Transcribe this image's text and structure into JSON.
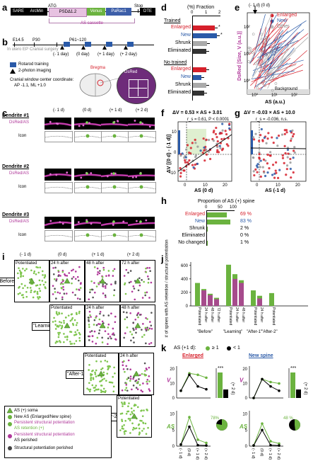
{
  "panels": {
    "a": "a",
    "b": "b",
    "c": "c",
    "d": "d",
    "e": "e",
    "f": "f",
    "g": "g",
    "h": "h",
    "i": "i",
    "j": "j",
    "k": "k"
  },
  "a": {
    "segments": [
      "SARE",
      "ArcMin",
      "PSDΔ1.2",
      "Venus",
      "PaRac1",
      "DTE"
    ],
    "atg": "ATG",
    "stop": "Stop",
    "cassette": "AS cassette"
  },
  "b": {
    "timeline": [
      "E14.5",
      "P30",
      "P61~120"
    ],
    "steps": [
      "In utero EP",
      "Cranial surgery"
    ],
    "days": [
      "(- 1 day)",
      "(0 day)",
      "(+ 1 day)",
      "(+ 2 day)"
    ],
    "legend_rotarod": "Rotarod training",
    "legend_imaging": "2-photon imaging",
    "coord_title": "Cranial window center coordinate:",
    "coord_value": "AP -1.1, ML +1.0",
    "bregma": "Bregma",
    "dsred": "DsRed"
  },
  "c": {
    "cols": [
      "(- 1 d)",
      "(0 d)",
      "(+ 1 d)",
      "(+ 2 d)"
    ],
    "dendrites": [
      "Dendrite #1",
      "Dendrite #2",
      "Dendrite #3"
    ],
    "row_labels": [
      "DsRed/AS",
      "Icon"
    ]
  },
  "d": {
    "axis_title": "(%) Fraction",
    "ticks": [
      "0",
      "1",
      "2"
    ],
    "group1": "Trained",
    "group2": "No trained",
    "rows": [
      "Enlarged",
      "New",
      "Shrunk",
      "Eliminated"
    ],
    "colors": {
      "enlarged": "#d6202b",
      "new": "#2a5aa8",
      "shrunk": "#aaaaaa",
      "eliminated": "#333333"
    },
    "trained": [
      1.55,
      1.7,
      1.0,
      0.95
    ],
    "untrained": [
      0.95,
      0.6,
      0.95,
      0.8
    ],
    "star": "*"
  },
  "e": {
    "top": "(- 1 d) (0 d)",
    "ylabel": "DsRed [Size, V (a.u.)]",
    "xlabel": "AS (a.u.)",
    "legend": [
      "Enlarged",
      "New",
      "Other"
    ],
    "background": "Background",
    "xticks": [
      "10⁰",
      "10¹",
      "10²"
    ],
    "yticks": [
      "10⁰",
      "10¹",
      "10²"
    ]
  },
  "f": {
    "eq": "ΔV = 0.53 × AS + 3.01",
    "stat": "r_s = 0.61, P < 0.0001",
    "ylabel": "ΔV [(0 d) - (-1 d)]",
    "xlabel": "AS (0 d)",
    "yticks": [
      "10",
      "0",
      "-10"
    ],
    "xticks": [
      "0",
      "10",
      "20"
    ]
  },
  "g": {
    "eq": "ΔV = -0.03 × AS + 10.0",
    "stat": "r_s = -0.036, n.s.",
    "xlabel": "AS (-1 d)",
    "xticks": [
      "0",
      "10",
      "20"
    ]
  },
  "h": {
    "title": "Proportion of AS (+) spine",
    "ticks": [
      "0",
      "50",
      "100"
    ],
    "rows": [
      {
        "label": "Enlarged",
        "value": 69,
        "text": "69 %"
      },
      {
        "label": "New",
        "value": 83,
        "text": "83 %"
      },
      {
        "label": "Shrunk",
        "value": 2,
        "text": "2 %"
      },
      {
        "label": "Eliminated",
        "value": 0,
        "text": "0 %"
      },
      {
        "label": "No changed",
        "value": 1,
        "text": "1 %"
      }
    ]
  },
  "i": {
    "cols": [
      "(- 1 d)",
      "(0 d)",
      "(+ 1 d)",
      "(+ 2 d)"
    ],
    "phases": [
      "\"Before\"",
      "\"Learning\"",
      "\"After-1\"",
      "\"After-2\""
    ],
    "row1": [
      "Potentiated",
      "24 h after",
      "48 h after",
      "72 h after"
    ],
    "row2": [
      "Potentiated",
      "24 h after",
      "48 h after"
    ],
    "row3": [
      "Potentiated",
      "24 h after"
    ],
    "row4": [
      "Potentiated"
    ],
    "legend": [
      "AS (+) soma",
      "New AS (Enlarged/New spine)",
      "Persistent structural potentiation",
      "AS retention (+)",
      "Persistent structural potentiation",
      "AS perished",
      "Structural potentiation perished"
    ]
  },
  "j": {
    "ylabel": "# of spines with AS retention / structural potentiation",
    "yticks": [
      "0",
      "200",
      "400",
      "600"
    ],
    "groups": [
      {
        "name": "\"Before\"",
        "bars": [
          "Potentiated",
          "24 h after",
          "48 h after",
          "72 h after"
        ],
        "green": [
          340,
          250,
          180,
          120
        ],
        "magenta": [
          0,
          230,
          160,
          100
        ]
      },
      {
        "name": "\"Learning\"",
        "bars": [
          "Potentiated",
          "24 h after",
          "48 h after"
        ],
        "green": [
          610,
          470,
          380
        ],
        "magenta": [
          0,
          400,
          340
        ]
      },
      {
        "name": "\"After-1\"",
        "bars": [
          "Potentiated",
          "24 h after"
        ],
        "green": [
          230,
          150
        ],
        "magenta": [
          0,
          110
        ]
      },
      {
        "name": "\"After-2\"",
        "bars": [
          "Potentiated"
        ],
        "green": [
          190
        ],
        "magenta": [
          0
        ]
      }
    ]
  },
  "k": {
    "legend_title": "AS (+1 d):",
    "legend_ge": "≥ 1",
    "legend_lt": "< 1",
    "enlarged": "Enlarged",
    "new": "New spine",
    "vlabel": "V",
    "aslabel": "AS",
    "xticks": [
      "(- 1 d)",
      "(0 d)",
      "(+ 1 d)",
      "(+ 2 d)"
    ],
    "bar_label": "(+ 2 d)",
    "stars": "***",
    "pct_enl": "78%",
    "pct_new": "48 %",
    "vticks": [
      "0",
      "10",
      "20"
    ],
    "asticks": [
      "0",
      "5",
      "10"
    ]
  }
}
